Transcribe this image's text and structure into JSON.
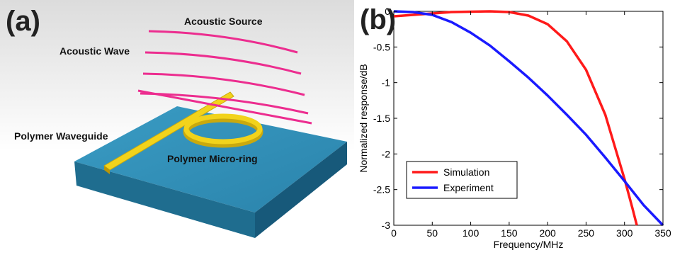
{
  "figure": {
    "panels": [
      {
        "label": "(a)",
        "callouts": {
          "source": "Acoustic Source",
          "wave": "Acoustic Wave",
          "waveguide": "Polymer Waveguide",
          "ring": "Polymer Micro-ring"
        },
        "colors": {
          "substrate_top": "#2f8db5",
          "substrate_side": "#1f6d8f",
          "waveguide": "#f2d31b",
          "wave": "#ec2d8f"
        }
      },
      {
        "label": "(b)"
      }
    ]
  },
  "chart_data": {
    "type": "line",
    "title": "",
    "xlabel": "Frequency/MHz",
    "ylabel": "Normalized response/dB",
    "xlim": [
      0,
      350
    ],
    "ylim": [
      -3,
      0
    ],
    "xticks": [
      0,
      50,
      100,
      150,
      200,
      250,
      300,
      350
    ],
    "yticks": [
      0,
      -0.5,
      -1,
      -1.5,
      -2,
      -2.5,
      -3
    ],
    "grid": false,
    "legend": "bottom-left",
    "series": [
      {
        "name": "Simulation",
        "color": "#ff1a1a",
        "x": [
          0,
          25,
          50,
          75,
          100,
          125,
          150,
          175,
          200,
          225,
          250,
          275,
          300,
          310,
          316
        ],
        "y": [
          -0.07,
          -0.05,
          -0.03,
          -0.01,
          -0.005,
          0.0,
          -0.01,
          -0.06,
          -0.18,
          -0.42,
          -0.82,
          -1.45,
          -2.35,
          -2.75,
          -3.0
        ]
      },
      {
        "name": "Experiment",
        "color": "#1a1aff",
        "x": [
          0,
          25,
          50,
          75,
          100,
          125,
          150,
          175,
          200,
          225,
          250,
          275,
          300,
          325,
          350
        ],
        "y": [
          0.0,
          -0.01,
          -0.05,
          -0.15,
          -0.3,
          -0.48,
          -0.7,
          -0.93,
          -1.18,
          -1.45,
          -1.73,
          -2.05,
          -2.38,
          -2.72,
          -3.0
        ]
      }
    ]
  }
}
